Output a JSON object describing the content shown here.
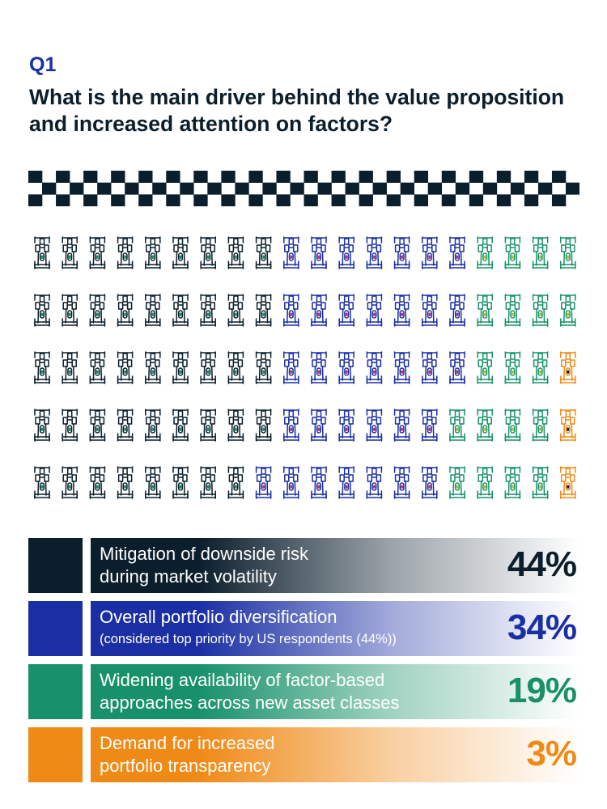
{
  "header": {
    "question_number": "Q1",
    "question_text": "What is the main driver behind the value proposition and increased attention on factors?"
  },
  "icon_grid": {
    "icon": "race-car-icon",
    "rows": 5,
    "columns": 20
  },
  "colors": {
    "dark": "#0b1e2c",
    "blue": "#1a2fa3",
    "green": "#18916a",
    "orange": "#ef8a17",
    "checker": "#0b1e2c"
  },
  "legend": [
    {
      "line1": "Mitigation of downside risk",
      "line2": "during market volatility",
      "sub": "",
      "percent": "44%"
    },
    {
      "line1": "Overall portfolio diversification",
      "line2": "",
      "sub": "(considered top priority by US respondents (44%))",
      "percent": "34%"
    },
    {
      "line1": "Widening availability of factor-based",
      "line2": "approaches across new asset classes",
      "sub": "",
      "percent": "19%"
    },
    {
      "line1": "Demand for increased",
      "line2": "portfolio transparency",
      "sub": "",
      "percent": "3%"
    }
  ],
  "chart_data": {
    "type": "waffle",
    "title": "What is the main driver behind the value proposition and increased attention on factors?",
    "categories": [
      "Mitigation of downside risk during market volatility",
      "Overall portfolio diversification",
      "Widening availability of factor-based approaches across new asset classes",
      "Demand for increased portfolio transparency"
    ],
    "values": [
      44,
      34,
      19,
      3
    ],
    "unit": "%",
    "grid": {
      "rows": 5,
      "columns": 20
    },
    "row_counts": [
      [
        9,
        7,
        4,
        0
      ],
      [
        9,
        7,
        4,
        0
      ],
      [
        9,
        7,
        3,
        1
      ],
      [
        9,
        6,
        4,
        1
      ],
      [
        8,
        7,
        4,
        1
      ]
    ]
  }
}
